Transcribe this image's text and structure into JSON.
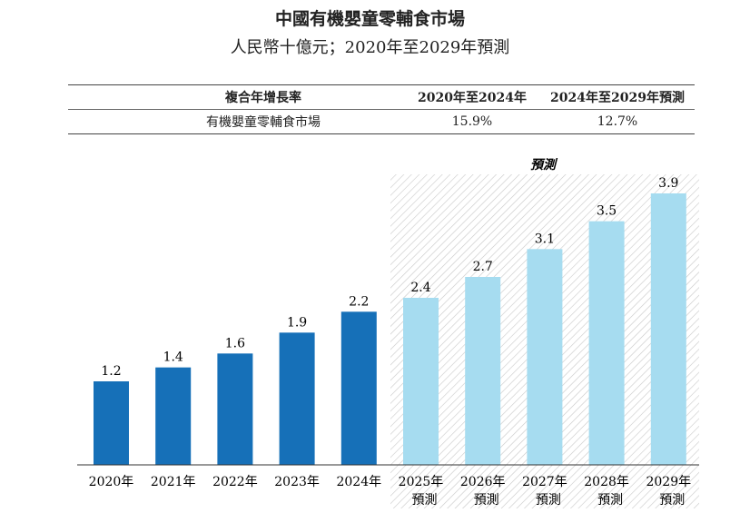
{
  "title": "中國有機嬰童零輔食市場",
  "subtitle": "人民幣十億元；2020年至2029年預測",
  "cagr_table": {
    "headers": [
      "複合年增長率",
      "2020年至2024年",
      "2024年至2029年預測"
    ],
    "rows": [
      [
        "有機嬰童零輔食市場",
        "15.9%",
        "12.7%"
      ]
    ]
  },
  "chart_data": {
    "type": "bar",
    "categories": [
      "2020年",
      "2021年",
      "2022年",
      "2023年",
      "2024年",
      "2025年",
      "2026年",
      "2027年",
      "2028年",
      "2029年"
    ],
    "category_sublabels": [
      "",
      "",
      "",
      "",
      "",
      "預測",
      "預測",
      "預測",
      "預測",
      "預測"
    ],
    "values": [
      1.2,
      1.4,
      1.6,
      1.9,
      2.2,
      2.4,
      2.7,
      3.1,
      3.5,
      3.9
    ],
    "data_labels": [
      "1.2",
      "1.4",
      "1.6",
      "1.9",
      "2.2",
      "2.4",
      "2.7",
      "3.1",
      "3.5",
      "3.9"
    ],
    "forecast_label": "預測",
    "forecast_start_index": 5,
    "ylim": [
      0,
      3.9
    ],
    "grid": false,
    "colors": {
      "historical": "#1670b8",
      "forecast": "#a6dcf0",
      "hatch": "#c8c8c8"
    }
  }
}
